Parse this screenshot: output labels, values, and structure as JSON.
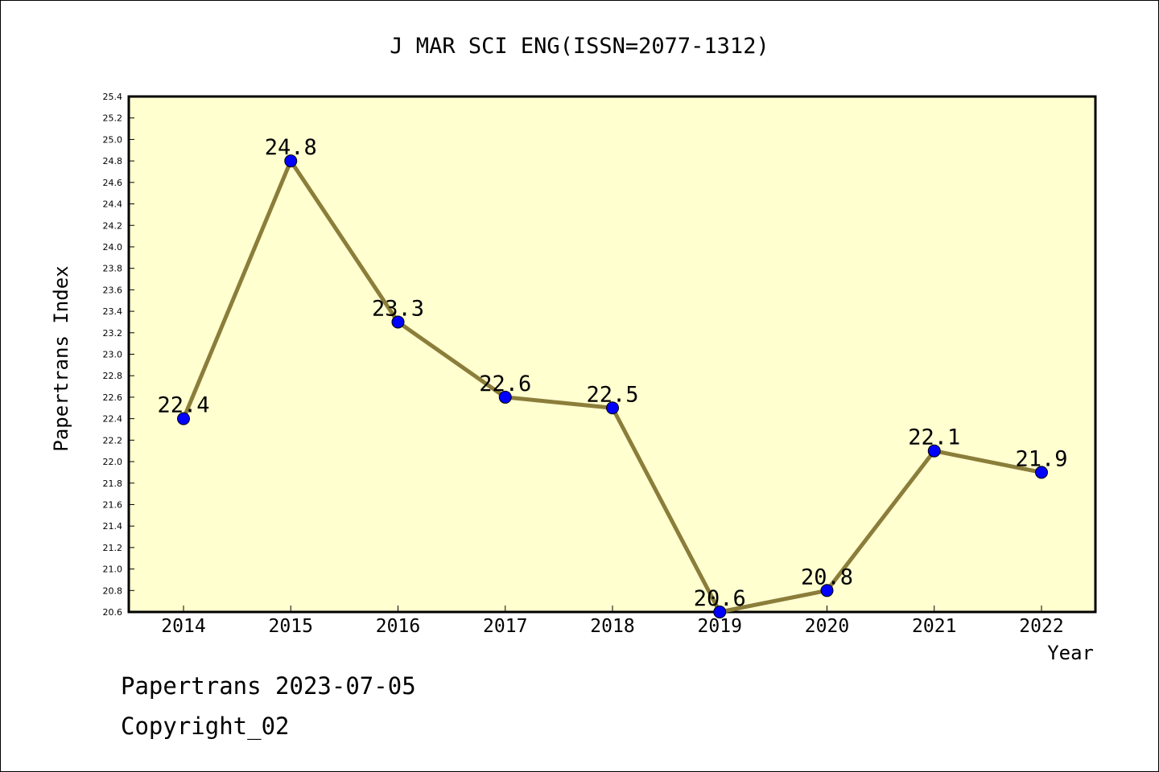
{
  "chart_data": {
    "type": "line",
    "title": "J MAR SCI ENG(ISSN=2077-1312)",
    "xlabel": "Year",
    "ylabel": "Papertrans Index",
    "x": [
      "2014",
      "2015",
      "2016",
      "2017",
      "2018",
      "2019",
      "2020",
      "2021",
      "2022"
    ],
    "values": [
      22.4,
      24.8,
      23.3,
      22.6,
      22.5,
      20.6,
      20.8,
      22.1,
      21.9
    ],
    "data_labels": [
      "22.4",
      "24.8",
      "23.3",
      "22.6",
      "22.5",
      "20.6",
      "20.8",
      "22.1",
      "21.9"
    ],
    "ylim": [
      20.6,
      25.4
    ],
    "yticks": [
      "20.6",
      "20.8",
      "21.0",
      "21.2",
      "21.4",
      "21.6",
      "21.8",
      "22.0",
      "22.2",
      "22.4",
      "22.6",
      "22.8",
      "23.0",
      "23.2",
      "23.4",
      "23.6",
      "23.8",
      "24.0",
      "24.2",
      "24.4",
      "24.6",
      "24.8",
      "25.0",
      "25.2",
      "25.4"
    ],
    "grid": false,
    "legend": "none",
    "colors": {
      "plot_background": "#ffffd0",
      "line": "#8b7d3a",
      "marker": "#0000ff"
    }
  },
  "footer": {
    "line1": "Papertrans 2023-07-05",
    "line2": "Copyright_02"
  }
}
